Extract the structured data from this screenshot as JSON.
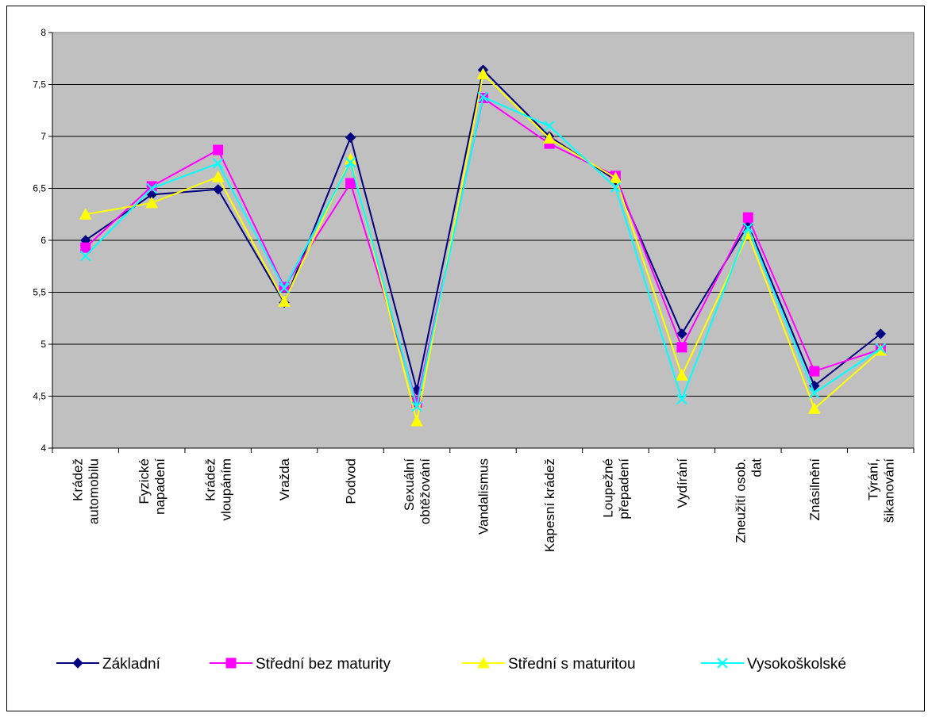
{
  "chart_data": {
    "type": "line",
    "title": "",
    "xlabel": "",
    "ylabel": "",
    "ylim": [
      4,
      8
    ],
    "yticks": [
      "4",
      "4,5",
      "5",
      "5,5",
      "6",
      "6,5",
      "7",
      "7,5",
      "8"
    ],
    "ytick_values": [
      4,
      4.5,
      5,
      5.5,
      6,
      6.5,
      7,
      7.5,
      8
    ],
    "grid": true,
    "plot_background": "#c0c0c0",
    "legend_position": "bottom",
    "categories": [
      [
        "Krádež",
        "automobilu"
      ],
      [
        "Fyzické",
        "napadení"
      ],
      [
        "Krádež",
        "vloupáním"
      ],
      [
        "Vražda"
      ],
      [
        "Podvod"
      ],
      [
        "Sexuální",
        "obtěžování"
      ],
      [
        "Vandalismus"
      ],
      [
        "Kapesní krádež"
      ],
      [
        "Loupežné",
        "přepadení"
      ],
      [
        "Vydírání"
      ],
      [
        "Zneužití osob.",
        "dat"
      ],
      [
        "Znásilnění"
      ],
      [
        "Týrání,",
        "šikanování"
      ]
    ],
    "series": [
      {
        "name": "Základní",
        "color": "#000080",
        "marker": "diamond",
        "values": [
          6.0,
          6.44,
          6.49,
          5.4,
          6.99,
          4.56,
          7.64,
          7.0,
          6.58,
          5.1,
          6.15,
          4.6,
          5.1
        ]
      },
      {
        "name": "Střední bez maturity",
        "color": "#ff00ff",
        "marker": "square",
        "values": [
          5.93,
          6.52,
          6.87,
          5.55,
          6.55,
          4.44,
          7.37,
          6.93,
          6.62,
          4.97,
          6.22,
          4.74,
          4.95
        ]
      },
      {
        "name": "Střední s maturitou",
        "color": "#ffff00",
        "marker": "triangle",
        "values": [
          6.25,
          6.36,
          6.61,
          5.41,
          6.78,
          4.26,
          7.6,
          6.98,
          6.6,
          4.7,
          6.06,
          4.38,
          4.94
        ]
      },
      {
        "name": "Vysokoškolské",
        "color": "#00ffff",
        "marker": "x",
        "values": [
          5.85,
          6.5,
          6.74,
          5.54,
          6.75,
          4.4,
          7.38,
          7.1,
          6.51,
          4.47,
          6.12,
          4.53,
          4.96
        ]
      }
    ]
  }
}
